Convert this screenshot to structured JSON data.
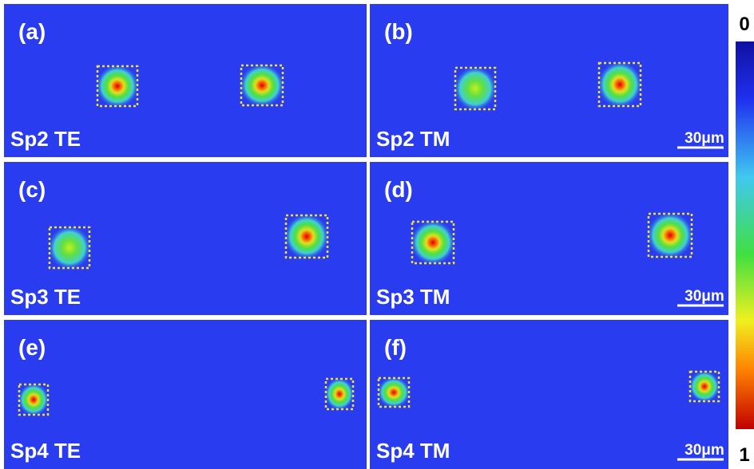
{
  "panels": [
    {
      "label": "(a)",
      "caption": "Sp2 TE"
    },
    {
      "label": "(b)",
      "caption": "Sp2 TM",
      "scale_bar": "30μm"
    },
    {
      "label": "(c)",
      "caption": "Sp3 TE"
    },
    {
      "label": "(d)",
      "caption": "Sp3 TM",
      "scale_bar": "30μm"
    },
    {
      "label": "(e)",
      "caption": "Sp4 TE"
    },
    {
      "label": "(f)",
      "caption": "Sp4 TM",
      "scale_bar": "30μm"
    }
  ],
  "colorbar": {
    "top_label": "0",
    "bottom_label": "1"
  }
}
